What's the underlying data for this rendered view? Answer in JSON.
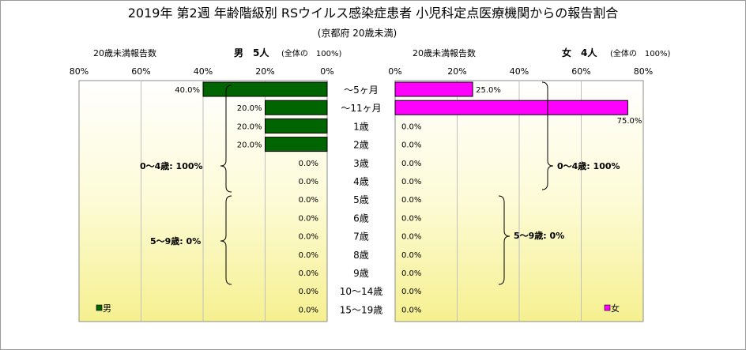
{
  "title": "2019年 第2週 年齢階級別 RSウイルス感染症患者 小児科定点医療機関からの報告割合",
  "subtitle": "(京都府 20歳未満)",
  "male_panel": {
    "header_left": "20歳未満報告数",
    "header_right": "男　5人",
    "header_note": "(全体の　100%)",
    "legend": "男",
    "color": "#006400",
    "group_labels": [
      "0～4歳: 100%",
      "5～9歳: 0%"
    ]
  },
  "female_panel": {
    "header_left": "20歳未満報告数",
    "header_right": "女　4人",
    "header_note": "(全体の　100%)",
    "legend": "女",
    "color": "#ff00ff",
    "group_labels": [
      "0～4歳: 100%",
      "5～9歳: 0%"
    ]
  },
  "chart_data": {
    "type": "bar",
    "orientation": "horizontal-butterfly",
    "categories": [
      "～5ヶ月",
      "～11ヶ月",
      "1歳",
      "2歳",
      "3歳",
      "4歳",
      "5歳",
      "6歳",
      "7歳",
      "8歳",
      "9歳",
      "10～14歳",
      "15～19歳"
    ],
    "series": [
      {
        "name": "男",
        "values": [
          40,
          20,
          20,
          20,
          0,
          0,
          0,
          0,
          0,
          0,
          0,
          0,
          0
        ],
        "labels": [
          "40.0%",
          "20.0%",
          "20.0%",
          "20.0%",
          "0.0%",
          "0.0%",
          "0.0%",
          "0.0%",
          "0.0%",
          "0.0%",
          "0.0%",
          "0.0%",
          "0.0%"
        ]
      },
      {
        "name": "女",
        "values": [
          25,
          75,
          0,
          0,
          0,
          0,
          0,
          0,
          0,
          0,
          0,
          0,
          0
        ],
        "labels": [
          "25.0%",
          "75.0%",
          "0.0%",
          "0.0%",
          "0.0%",
          "0.0%",
          "0.0%",
          "0.0%",
          "0.0%",
          "0.0%",
          "0.0%",
          "0.0%",
          "0.0%"
        ]
      }
    ],
    "male_ticks": [
      "80%",
      "60%",
      "40%",
      "20%",
      "0%"
    ],
    "female_ticks": [
      "0%",
      "20%",
      "40%",
      "60%",
      "80%"
    ],
    "xlim": [
      0,
      80
    ],
    "unit": "%",
    "grid": true
  }
}
